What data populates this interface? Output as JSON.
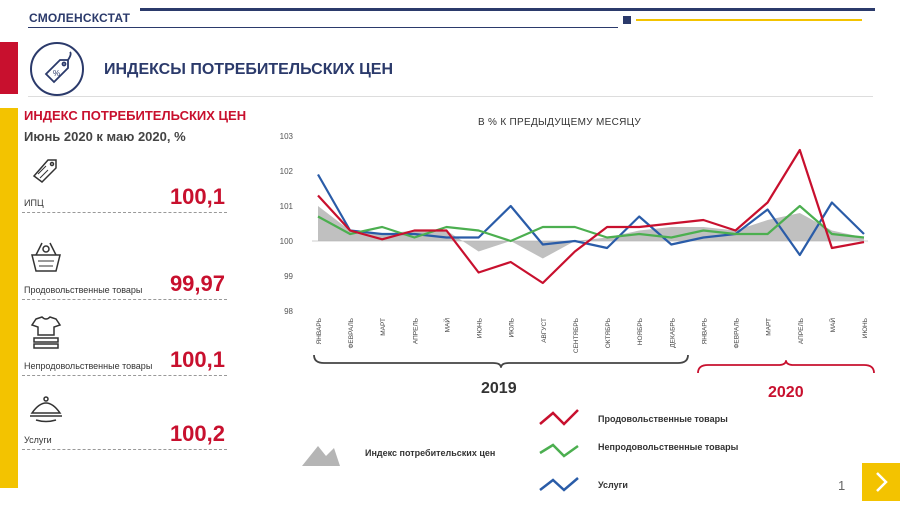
{
  "header": {
    "brand": "СМОЛЕНСКСТАТ",
    "title": "ИНДЕКСЫ ПОТРЕБИТЕЛЬСКИХ ЦЕН"
  },
  "left_panel": {
    "title": "ИНДЕКС ПОТРЕБИТЕЛЬСКИХ ЦЕН",
    "subtitle": "Июнь 2020 к маю 2020, %",
    "items": [
      {
        "label": "ИПЦ",
        "value": "100,1",
        "icon": "price-tag-icon"
      },
      {
        "label": "Продовольственные товары",
        "value": "99,97",
        "icon": "grocery-basket-icon"
      },
      {
        "label": "Непродовольственные товары",
        "value": "100,1",
        "icon": "clothes-stack-icon"
      },
      {
        "label": "Услуги",
        "value": "100,2",
        "icon": "service-cloche-icon"
      }
    ]
  },
  "colors": {
    "navy": "#2b3a6b",
    "red": "#c8102e",
    "yellow": "#f3c300",
    "food": "#c8102e",
    "nonfood": "#4caf50",
    "services": "#2a5ca8",
    "cpi": "#b5b5b5"
  },
  "chart_data": {
    "type": "line",
    "title": "В % К ПРЕДЫДУЩЕМУ МЕСЯЦУ",
    "categories": [
      "ЯНВАРЬ",
      "ФЕВРАЛЬ",
      "МАРТ",
      "АПРЕЛЬ",
      "МАЙ",
      "ИЮНЬ",
      "ИЮЛЬ",
      "АВГУСТ",
      "СЕНТЯБРЬ",
      "ОКТЯБРЬ",
      "НОЯБРЬ",
      "ДЕКАБРЬ",
      "ЯНВАРЬ",
      "ФЕВРАЛЬ",
      "МАРТ",
      "АПРЕЛЬ",
      "МАЙ",
      "ИЮНЬ"
    ],
    "ylim": [
      98,
      103
    ],
    "yticks": [
      "98",
      "99",
      "100",
      "101",
      "102",
      "103"
    ],
    "year_groups": [
      {
        "label": "2019",
        "color": "#333333"
      },
      {
        "label": "2020",
        "color": "#c8102e"
      }
    ],
    "series": [
      {
        "name": "Индекс потребительских цен",
        "kind": "area",
        "values": [
          101.0,
          100.3,
          100.2,
          100.3,
          100.3,
          99.7,
          100.0,
          99.5,
          100.0,
          100.1,
          100.3,
          100.4,
          100.4,
          100.3,
          100.6,
          100.8,
          100.3,
          100.1
        ]
      },
      {
        "name": "Продовольственные товары",
        "kind": "line",
        "values": [
          101.3,
          100.3,
          100.05,
          100.3,
          100.3,
          99.1,
          99.4,
          98.8,
          99.7,
          100.4,
          100.4,
          100.5,
          100.6,
          100.3,
          101.1,
          102.6,
          99.8,
          99.97
        ]
      },
      {
        "name": "Непродовольственные товары",
        "kind": "line",
        "values": [
          100.7,
          100.2,
          100.4,
          100.1,
          100.4,
          100.3,
          100.0,
          100.4,
          100.4,
          100.1,
          100.2,
          100.1,
          100.3,
          100.2,
          100.2,
          101.0,
          100.2,
          100.1
        ]
      },
      {
        "name": "Услуги",
        "kind": "line",
        "values": [
          101.9,
          100.3,
          100.2,
          100.2,
          100.1,
          100.1,
          101.0,
          99.9,
          100.0,
          99.8,
          100.7,
          99.9,
          100.1,
          100.2,
          100.9,
          99.6,
          101.1,
          100.2
        ]
      }
    ]
  },
  "footer": {
    "page_number": "1"
  }
}
